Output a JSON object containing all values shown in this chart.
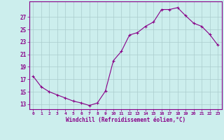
{
  "x": [
    0,
    1,
    2,
    3,
    4,
    5,
    6,
    7,
    8,
    9,
    10,
    11,
    12,
    13,
    14,
    15,
    16,
    17,
    18,
    19,
    20,
    21,
    22,
    23
  ],
  "y": [
    17.5,
    15.8,
    15.0,
    14.5,
    14.0,
    13.5,
    13.2,
    12.8,
    13.2,
    15.1,
    20.0,
    21.5,
    24.1,
    24.5,
    25.5,
    26.2,
    28.2,
    28.2,
    28.5,
    27.2,
    26.0,
    25.5,
    24.2,
    22.5
  ],
  "bg_color": "#cceeed",
  "line_color": "#880088",
  "marker_color": "#880088",
  "grid_color": "#aacccc",
  "xlabel": "Windchill (Refroidissement éolien,°C)",
  "xlabel_color": "#880088",
  "xtick_labels": [
    "0",
    "1",
    "2",
    "3",
    "4",
    "5",
    "6",
    "7",
    "8",
    "9",
    "10",
    "11",
    "12",
    "13",
    "14",
    "15",
    "16",
    "17",
    "18",
    "19",
    "20",
    "21",
    "22",
    "23"
  ],
  "ytick_values": [
    13,
    15,
    17,
    19,
    21,
    23,
    25,
    27
  ],
  "ylim": [
    12.2,
    29.5
  ],
  "xlim": [
    -0.5,
    23.5
  ],
  "tick_color": "#880088",
  "spine_color": "#880088"
}
